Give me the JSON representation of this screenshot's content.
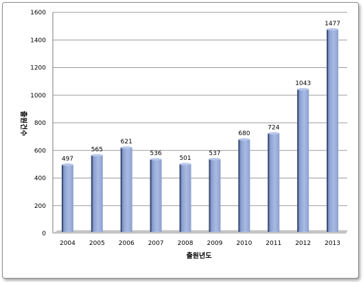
{
  "chart_data": {
    "type": "bar",
    "categories": [
      "2004",
      "2005",
      "2006",
      "2007",
      "2008",
      "2009",
      "2010",
      "2011",
      "2012",
      "2013"
    ],
    "values": [
      497,
      565,
      621,
      536,
      501,
      537,
      680,
      724,
      1043,
      1477
    ],
    "data_labels": [
      "497",
      "565",
      "621",
      "536",
      "501",
      "537",
      "680",
      "724",
      "1043",
      "1477"
    ],
    "title": "",
    "xlabel": "출원년도",
    "ylabel": "출원건수",
    "ylim": [
      0,
      1600
    ],
    "yticks": [
      "0",
      "200",
      "400",
      "600",
      "800",
      "1000",
      "1200",
      "1400",
      "1600"
    ],
    "grid": true,
    "legend": "none",
    "colors": {
      "bar": "#98acd8",
      "bar_dark": "#6f86bd",
      "grid": "#9a9a9a",
      "floor": "#c8c8c8"
    }
  }
}
